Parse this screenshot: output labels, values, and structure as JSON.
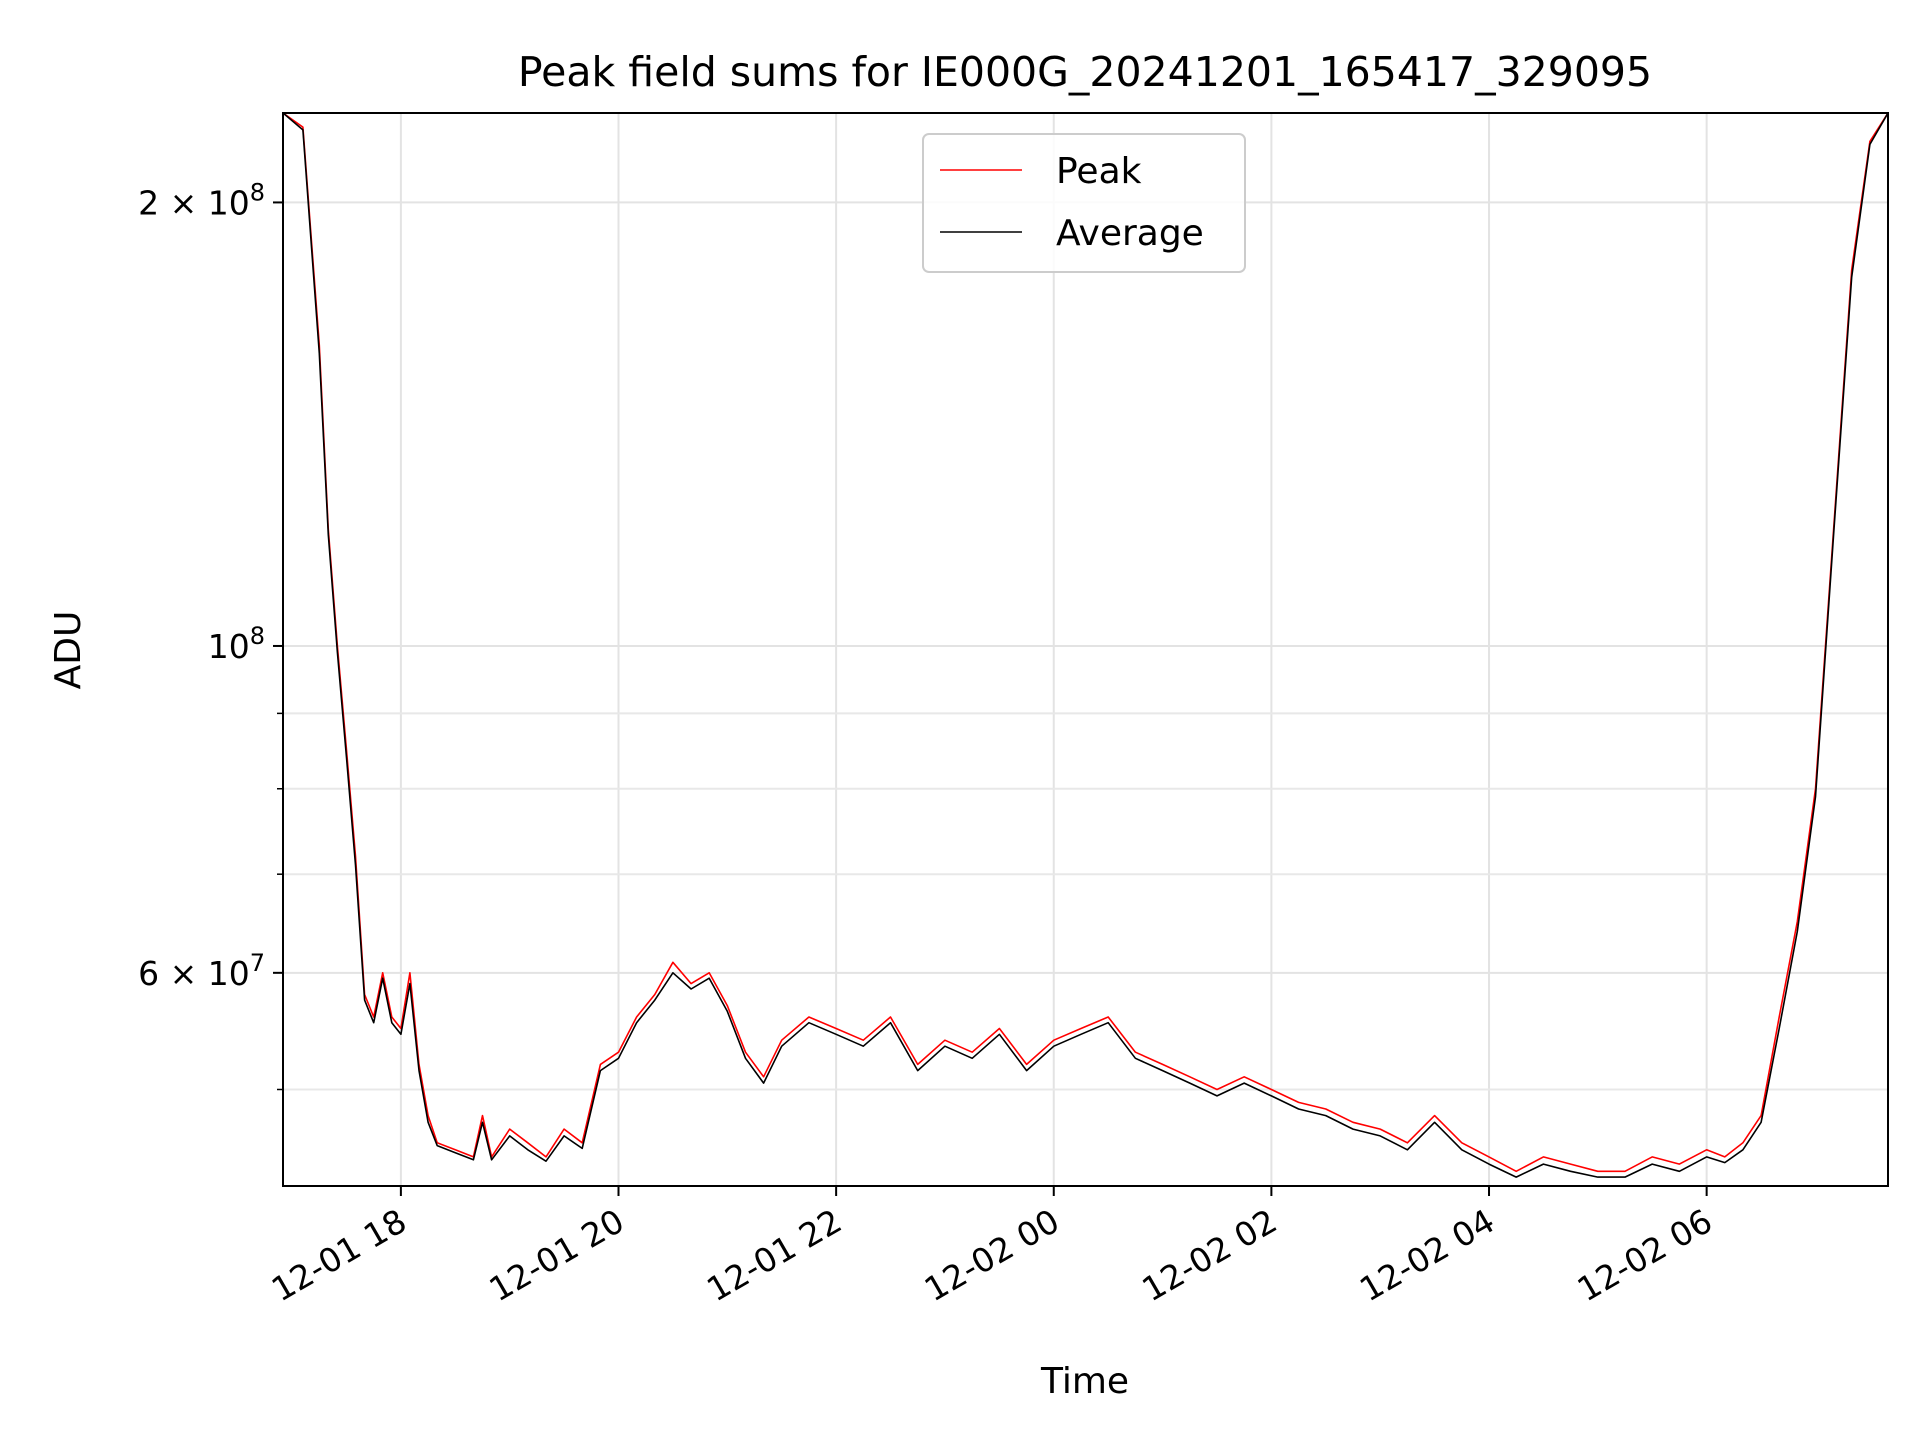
{
  "chart_data": {
    "type": "line",
    "title": "Peak field sums for IE000G_20241201_165417_329095",
    "xlabel": "Time",
    "ylabel": "ADU",
    "xlim": [
      "2024-12-01 16:55",
      "2024-12-02 07:40"
    ],
    "ylim": [
      43000000,
      230000000
    ],
    "yscale": "log",
    "grid": true,
    "legend": {
      "position": "top-center"
    },
    "x_ticks": [
      "12-01 18",
      "12-01 20",
      "12-01 22",
      "12-02 00",
      "12-02 02",
      "12-02 04",
      "12-02 06"
    ],
    "x_tick_times": [
      "2024-12-01 18:00",
      "2024-12-01 20:00",
      "2024-12-01 22:00",
      "2024-12-02 00:00",
      "2024-12-02 02:00",
      "2024-12-02 04:00",
      "2024-12-02 06:00"
    ],
    "y_tick_labels": [
      {
        "value": 60000000,
        "mantissa": "6",
        "exp": "7"
      },
      {
        "value": 100000000,
        "mantissa": "",
        "exp": "8"
      },
      {
        "value": 200000000,
        "mantissa": "2",
        "exp": "8"
      }
    ],
    "y_minor_ticks": [
      50000000,
      70000000,
      80000000,
      90000000
    ],
    "series": [
      {
        "name": "Peak",
        "color": "#ff0000",
        "x": [
          "2024-12-01 16:55",
          "2024-12-01 17:06",
          "2024-12-01 17:15",
          "2024-12-01 17:20",
          "2024-12-01 17:25",
          "2024-12-01 17:30",
          "2024-12-01 17:35",
          "2024-12-01 17:40",
          "2024-12-01 17:45",
          "2024-12-01 17:50",
          "2024-12-01 17:55",
          "2024-12-01 18:00",
          "2024-12-01 18:05",
          "2024-12-01 18:10",
          "2024-12-01 18:15",
          "2024-12-01 18:20",
          "2024-12-01 18:30",
          "2024-12-01 18:40",
          "2024-12-01 18:45",
          "2024-12-01 18:50",
          "2024-12-01 19:00",
          "2024-12-01 19:10",
          "2024-12-01 19:20",
          "2024-12-01 19:30",
          "2024-12-01 19:40",
          "2024-12-01 19:50",
          "2024-12-01 20:00",
          "2024-12-01 20:10",
          "2024-12-01 20:20",
          "2024-12-01 20:30",
          "2024-12-01 20:40",
          "2024-12-01 20:50",
          "2024-12-01 21:00",
          "2024-12-01 21:10",
          "2024-12-01 21:20",
          "2024-12-01 21:30",
          "2024-12-01 21:45",
          "2024-12-01 22:00",
          "2024-12-01 22:15",
          "2024-12-01 22:30",
          "2024-12-01 22:45",
          "2024-12-01 23:00",
          "2024-12-01 23:15",
          "2024-12-01 23:30",
          "2024-12-01 23:45",
          "2024-12-02 00:00",
          "2024-12-02 00:15",
          "2024-12-02 00:30",
          "2024-12-02 00:45",
          "2024-12-02 01:00",
          "2024-12-02 01:15",
          "2024-12-02 01:30",
          "2024-12-02 01:45",
          "2024-12-02 02:00",
          "2024-12-02 02:15",
          "2024-12-02 02:30",
          "2024-12-02 02:45",
          "2024-12-02 03:00",
          "2024-12-02 03:15",
          "2024-12-02 03:30",
          "2024-12-02 03:45",
          "2024-12-02 04:00",
          "2024-12-02 04:15",
          "2024-12-02 04:30",
          "2024-12-02 04:45",
          "2024-12-02 05:00",
          "2024-12-02 05:15",
          "2024-12-02 05:30",
          "2024-12-02 05:45",
          "2024-12-02 06:00",
          "2024-12-02 06:10",
          "2024-12-02 06:20",
          "2024-12-02 06:30",
          "2024-12-02 06:40",
          "2024-12-02 06:50",
          "2024-12-02 07:00",
          "2024-12-02 07:10",
          "2024-12-02 07:20",
          "2024-12-02 07:30",
          "2024-12-02 07:40"
        ],
        "y": [
          230000000,
          225000000,
          160000000,
          120000000,
          100000000,
          85000000,
          72000000,
          58000000,
          56000000,
          60000000,
          56000000,
          55000000,
          60000000,
          52000000,
          48000000,
          46000000,
          45500000,
          45000000,
          48000000,
          45000000,
          47000000,
          46000000,
          45000000,
          47000000,
          46000000,
          52000000,
          53000000,
          56000000,
          58000000,
          61000000,
          59000000,
          60000000,
          57000000,
          53000000,
          51000000,
          54000000,
          56000000,
          55000000,
          54000000,
          56000000,
          52000000,
          54000000,
          53000000,
          55000000,
          52000000,
          54000000,
          55000000,
          56000000,
          53000000,
          52000000,
          51000000,
          50000000,
          51000000,
          50000000,
          49000000,
          48500000,
          47500000,
          47000000,
          46000000,
          48000000,
          46000000,
          45000000,
          44000000,
          45000000,
          44500000,
          44000000,
          44000000,
          45000000,
          44500000,
          45500000,
          45000000,
          46000000,
          48000000,
          56000000,
          65000000,
          80000000,
          120000000,
          180000000,
          220000000,
          230000000
        ]
      },
      {
        "name": "Average",
        "color": "#000000",
        "x": [
          "2024-12-01 16:55",
          "2024-12-01 17:06",
          "2024-12-01 17:15",
          "2024-12-01 17:20",
          "2024-12-01 17:25",
          "2024-12-01 17:30",
          "2024-12-01 17:35",
          "2024-12-01 17:40",
          "2024-12-01 17:45",
          "2024-12-01 17:50",
          "2024-12-01 17:55",
          "2024-12-01 18:00",
          "2024-12-01 18:05",
          "2024-12-01 18:10",
          "2024-12-01 18:15",
          "2024-12-01 18:20",
          "2024-12-01 18:30",
          "2024-12-01 18:40",
          "2024-12-01 18:45",
          "2024-12-01 18:50",
          "2024-12-01 19:00",
          "2024-12-01 19:10",
          "2024-12-01 19:20",
          "2024-12-01 19:30",
          "2024-12-01 19:40",
          "2024-12-01 19:50",
          "2024-12-01 20:00",
          "2024-12-01 20:10",
          "2024-12-01 20:20",
          "2024-12-01 20:30",
          "2024-12-01 20:40",
          "2024-12-01 20:50",
          "2024-12-01 21:00",
          "2024-12-01 21:10",
          "2024-12-01 21:20",
          "2024-12-01 21:30",
          "2024-12-01 21:45",
          "2024-12-01 22:00",
          "2024-12-01 22:15",
          "2024-12-01 22:30",
          "2024-12-01 22:45",
          "2024-12-01 23:00",
          "2024-12-01 23:15",
          "2024-12-01 23:30",
          "2024-12-01 23:45",
          "2024-12-02 00:00",
          "2024-12-02 00:15",
          "2024-12-02 00:30",
          "2024-12-02 00:45",
          "2024-12-02 01:00",
          "2024-12-02 01:15",
          "2024-12-02 01:30",
          "2024-12-02 01:45",
          "2024-12-02 02:00",
          "2024-12-02 02:15",
          "2024-12-02 02:30",
          "2024-12-02 02:45",
          "2024-12-02 03:00",
          "2024-12-02 03:15",
          "2024-12-02 03:30",
          "2024-12-02 03:45",
          "2024-12-02 04:00",
          "2024-12-02 04:15",
          "2024-12-02 04:30",
          "2024-12-02 04:45",
          "2024-12-02 05:00",
          "2024-12-02 05:15",
          "2024-12-02 05:30",
          "2024-12-02 05:45",
          "2024-12-02 06:00",
          "2024-12-02 06:10",
          "2024-12-02 06:20",
          "2024-12-02 06:30",
          "2024-12-02 06:40",
          "2024-12-02 06:50",
          "2024-12-02 07:00",
          "2024-12-02 07:10",
          "2024-12-02 07:20",
          "2024-12-02 07:30",
          "2024-12-02 07:40"
        ],
        "y": [
          230000000,
          224000000,
          158000000,
          119000000,
          99000000,
          84000000,
          71000000,
          57500000,
          55500000,
          59500000,
          55500000,
          54500000,
          59000000,
          51500000,
          47500000,
          45800000,
          45300000,
          44800000,
          47500000,
          44800000,
          46500000,
          45500000,
          44700000,
          46500000,
          45600000,
          51500000,
          52500000,
          55500000,
          57500000,
          60000000,
          58500000,
          59500000,
          56500000,
          52500000,
          50500000,
          53500000,
          55500000,
          54500000,
          53500000,
          55500000,
          51500000,
          53500000,
          52500000,
          54500000,
          51500000,
          53500000,
          54500000,
          55500000,
          52500000,
          51500000,
          50500000,
          49500000,
          50500000,
          49500000,
          48500000,
          48000000,
          47000000,
          46500000,
          45500000,
          47500000,
          45500000,
          44500000,
          43600000,
          44500000,
          44000000,
          43600000,
          43600000,
          44500000,
          44000000,
          45000000,
          44600000,
          45500000,
          47500000,
          55000000,
          64000000,
          79000000,
          119000000,
          178000000,
          219000000,
          230000000
        ]
      }
    ]
  }
}
